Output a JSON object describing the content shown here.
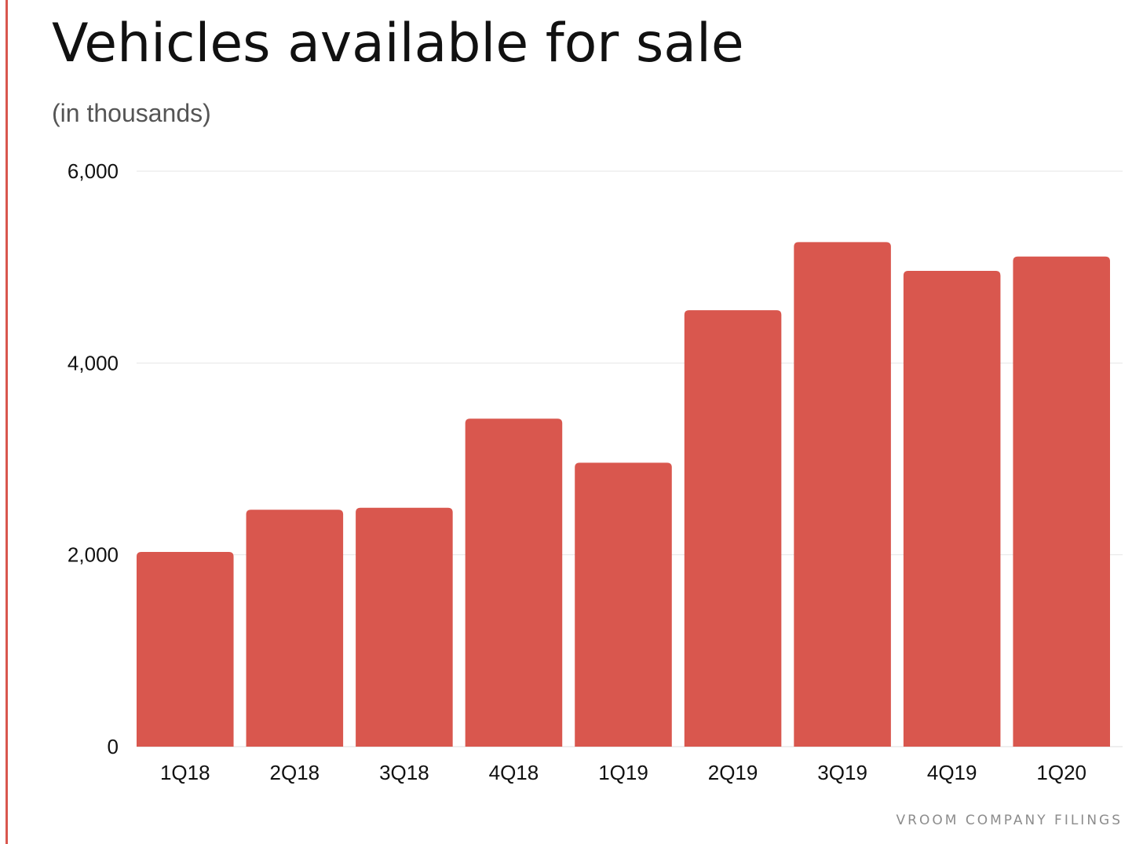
{
  "chart_data": {
    "type": "bar",
    "title": "Vehicles available for sale",
    "subtitle": "(in thousands)",
    "xlabel": "",
    "ylabel": "",
    "categories": [
      "1Q18",
      "2Q18",
      "3Q18",
      "4Q18",
      "1Q19",
      "2Q19",
      "3Q19",
      "4Q19",
      "1Q20"
    ],
    "values": [
      2030,
      2470,
      2490,
      3420,
      2960,
      4550,
      5260,
      4960,
      5110
    ],
    "ylim": [
      0,
      6000
    ],
    "yticks": [
      0,
      2000,
      4000,
      6000
    ],
    "ytick_labels": [
      "0",
      "2,000",
      "4,000",
      "6,000"
    ],
    "grid": true,
    "legend": "none",
    "bar_color": "#d9574e",
    "grid_color": "#e6e6e6",
    "source": "VROOM COMPANY FILINGS"
  }
}
